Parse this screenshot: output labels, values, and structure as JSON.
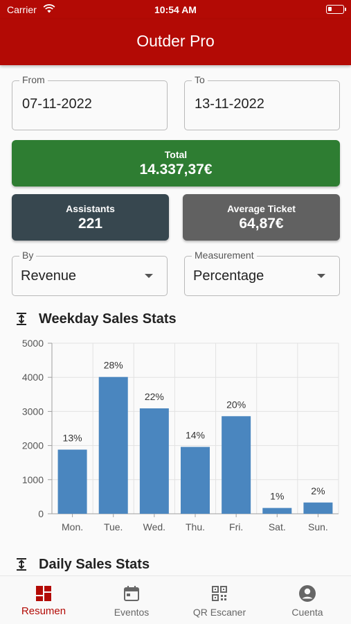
{
  "status_bar": {
    "carrier": "Carrier",
    "time": "10:54 AM"
  },
  "app_bar": {
    "title": "Outder Pro"
  },
  "filters": {
    "from": {
      "label": "From",
      "value": "07-11-2022"
    },
    "to": {
      "label": "To",
      "value": "13-11-2022"
    },
    "by": {
      "label": "By",
      "value": "Revenue"
    },
    "measurement": {
      "label": "Measurement",
      "value": "Percentage"
    }
  },
  "summary": {
    "total": {
      "label": "Total",
      "value": "14.337,37€"
    },
    "assistants": {
      "label": "Assistants",
      "value": "221"
    },
    "average_ticket": {
      "label": "Average Ticket",
      "value": "64,87€"
    }
  },
  "sections": {
    "weekday": "Weekday Sales Stats",
    "daily": "Daily Sales Stats"
  },
  "chart_data": {
    "type": "bar",
    "categories": [
      "Mon.",
      "Tue.",
      "Wed.",
      "Thu.",
      "Fri.",
      "Sat.",
      "Sun."
    ],
    "values": [
      1880,
      4010,
      3090,
      1960,
      2860,
      170,
      330
    ],
    "data_labels": [
      "13%",
      "28%",
      "22%",
      "14%",
      "20%",
      "1%",
      "2%"
    ],
    "ylim": [
      0,
      5000
    ],
    "yticks": [
      0,
      1000,
      2000,
      3000,
      4000,
      5000
    ],
    "grid": true,
    "bar_color": "#4a86bf"
  },
  "tabs": [
    {
      "label": "Resumen",
      "icon": "dashboard-icon",
      "active": true
    },
    {
      "label": "Eventos",
      "icon": "calendar-icon",
      "active": false
    },
    {
      "label": "QR Escaner",
      "icon": "qr-code-icon",
      "active": false
    },
    {
      "label": "Cuenta",
      "icon": "account-circle-icon",
      "active": false
    }
  ],
  "colors": {
    "brand": "#b30a05",
    "total_card": "#2e7d32",
    "assistants_card": "#37474f",
    "avg_ticket_card": "#616161"
  }
}
